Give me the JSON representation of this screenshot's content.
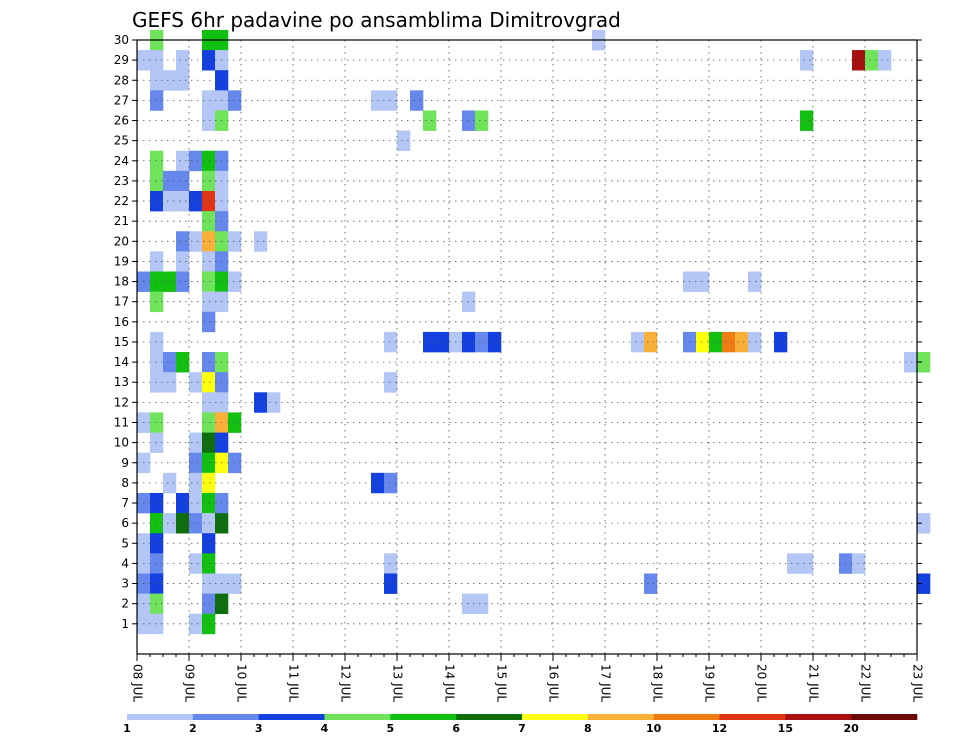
{
  "chart_data": {
    "type": "heatmap",
    "title": "GEFS 6hr padavine po ansamblima Dimitrovgrad",
    "xlabel": "",
    "ylabel": "",
    "x_ticks": [
      "08 JUL",
      "09 JUL",
      "10 JUL",
      "11 JUL",
      "12 JUL",
      "13 JUL",
      "14 JUL",
      "15 JUL",
      "16 JUL",
      "17 JUL",
      "18 JUL",
      "19 JUL",
      "20 JUL",
      "21 JUL",
      "22 JUL",
      "23 JUL"
    ],
    "y_ticks": [
      "1",
      "2",
      "3",
      "4",
      "5",
      "6",
      "7",
      "8",
      "9",
      "10",
      "11",
      "12",
      "13",
      "14",
      "15",
      "16",
      "17",
      "18",
      "19",
      "20",
      "21",
      "22",
      "23",
      "24",
      "25",
      "26",
      "27",
      "28",
      "29",
      "30"
    ],
    "x_steps_per_day": 4,
    "grid": true,
    "colorbar": {
      "labels": [
        "1",
        "2",
        "3",
        "4",
        "5",
        "6",
        "7",
        "8",
        "10",
        "12",
        "15",
        "20"
      ],
      "colors": [
        "#b3c6f5",
        "#6688ec",
        "#1540e0",
        "#6fe35a",
        "#12c012",
        "#0e6e0e",
        "#ffff10",
        "#f8b038",
        "#f07c14",
        "#e03414",
        "#a81010",
        "#6c0808"
      ]
    },
    "cell_value_note": "values are colour class indices 1-12 (1 = 1-2 mm ... 12 = >20 mm)",
    "cells": [
      {
        "m": 30,
        "s": 1,
        "v": 4
      },
      {
        "m": 30,
        "s": 5,
        "v": 5
      },
      {
        "m": 30,
        "s": 6,
        "v": 5
      },
      {
        "m": 30,
        "s": 35,
        "v": 1
      },
      {
        "m": 29,
        "s": 0,
        "v": 1
      },
      {
        "m": 29,
        "s": 1,
        "v": 1
      },
      {
        "m": 29,
        "s": 3,
        "v": 1
      },
      {
        "m": 29,
        "s": 5,
        "v": 3
      },
      {
        "m": 29,
        "s": 6,
        "v": 1
      },
      {
        "m": 29,
        "s": 51,
        "v": 1
      },
      {
        "m": 29,
        "s": 55,
        "v": 11
      },
      {
        "m": 29,
        "s": 56,
        "v": 4
      },
      {
        "m": 29,
        "s": 57,
        "v": 1
      },
      {
        "m": 28,
        "s": 1,
        "v": 1
      },
      {
        "m": 28,
        "s": 2,
        "v": 1
      },
      {
        "m": 28,
        "s": 3,
        "v": 1
      },
      {
        "m": 28,
        "s": 6,
        "v": 3
      },
      {
        "m": 27,
        "s": 1,
        "v": 2
      },
      {
        "m": 27,
        "s": 5,
        "v": 1
      },
      {
        "m": 27,
        "s": 6,
        "v": 1
      },
      {
        "m": 27,
        "s": 7,
        "v": 2
      },
      {
        "m": 27,
        "s": 18,
        "v": 1
      },
      {
        "m": 27,
        "s": 19,
        "v": 1
      },
      {
        "m": 27,
        "s": 21,
        "v": 2
      },
      {
        "m": 26,
        "s": 5,
        "v": 1
      },
      {
        "m": 26,
        "s": 6,
        "v": 4
      },
      {
        "m": 26,
        "s": 22,
        "v": 4
      },
      {
        "m": 26,
        "s": 25,
        "v": 2
      },
      {
        "m": 26,
        "s": 26,
        "v": 4
      },
      {
        "m": 26,
        "s": 51,
        "v": 5
      },
      {
        "m": 25,
        "s": 20,
        "v": 1
      },
      {
        "m": 24,
        "s": 1,
        "v": 4
      },
      {
        "m": 24,
        "s": 3,
        "v": 1
      },
      {
        "m": 24,
        "s": 4,
        "v": 2
      },
      {
        "m": 24,
        "s": 5,
        "v": 5
      },
      {
        "m": 24,
        "s": 6,
        "v": 2
      },
      {
        "m": 23,
        "s": 1,
        "v": 4
      },
      {
        "m": 23,
        "s": 2,
        "v": 2
      },
      {
        "m": 23,
        "s": 3,
        "v": 2
      },
      {
        "m": 23,
        "s": 5,
        "v": 4
      },
      {
        "m": 23,
        "s": 6,
        "v": 1
      },
      {
        "m": 22,
        "s": 1,
        "v": 3
      },
      {
        "m": 22,
        "s": 2,
        "v": 1
      },
      {
        "m": 22,
        "s": 3,
        "v": 1
      },
      {
        "m": 22,
        "s": 4,
        "v": 3
      },
      {
        "m": 22,
        "s": 5,
        "v": 10
      },
      {
        "m": 22,
        "s": 6,
        "v": 1
      },
      {
        "m": 21,
        "s": 5,
        "v": 4
      },
      {
        "m": 21,
        "s": 6,
        "v": 2
      },
      {
        "m": 20,
        "s": 3,
        "v": 2
      },
      {
        "m": 20,
        "s": 4,
        "v": 1
      },
      {
        "m": 20,
        "s": 5,
        "v": 8
      },
      {
        "m": 20,
        "s": 6,
        "v": 4
      },
      {
        "m": 20,
        "s": 7,
        "v": 1
      },
      {
        "m": 20,
        "s": 9,
        "v": 1
      },
      {
        "m": 19,
        "s": 1,
        "v": 1
      },
      {
        "m": 19,
        "s": 3,
        "v": 1
      },
      {
        "m": 19,
        "s": 5,
        "v": 1
      },
      {
        "m": 19,
        "s": 6,
        "v": 2
      },
      {
        "m": 18,
        "s": 0,
        "v": 2
      },
      {
        "m": 18,
        "s": 1,
        "v": 5
      },
      {
        "m": 18,
        "s": 2,
        "v": 5
      },
      {
        "m": 18,
        "s": 3,
        "v": 2
      },
      {
        "m": 18,
        "s": 5,
        "v": 4
      },
      {
        "m": 18,
        "s": 6,
        "v": 5
      },
      {
        "m": 18,
        "s": 7,
        "v": 1
      },
      {
        "m": 18,
        "s": 42,
        "v": 1
      },
      {
        "m": 18,
        "s": 43,
        "v": 1
      },
      {
        "m": 18,
        "s": 47,
        "v": 1
      },
      {
        "m": 17,
        "s": 1,
        "v": 4
      },
      {
        "m": 17,
        "s": 5,
        "v": 1
      },
      {
        "m": 17,
        "s": 6,
        "v": 1
      },
      {
        "m": 17,
        "s": 25,
        "v": 1
      },
      {
        "m": 16,
        "s": 5,
        "v": 2
      },
      {
        "m": 15,
        "s": 1,
        "v": 1
      },
      {
        "m": 15,
        "s": 19,
        "v": 1
      },
      {
        "m": 15,
        "s": 22,
        "v": 3
      },
      {
        "m": 15,
        "s": 23,
        "v": 3
      },
      {
        "m": 15,
        "s": 24,
        "v": 1
      },
      {
        "m": 15,
        "s": 25,
        "v": 3
      },
      {
        "m": 15,
        "s": 26,
        "v": 2
      },
      {
        "m": 15,
        "s": 27,
        "v": 3
      },
      {
        "m": 15,
        "s": 38,
        "v": 1
      },
      {
        "m": 15,
        "s": 39,
        "v": 8
      },
      {
        "m": 15,
        "s": 42,
        "v": 2
      },
      {
        "m": 15,
        "s": 43,
        "v": 7
      },
      {
        "m": 15,
        "s": 44,
        "v": 5
      },
      {
        "m": 15,
        "s": 45,
        "v": 9
      },
      {
        "m": 15,
        "s": 46,
        "v": 8
      },
      {
        "m": 15,
        "s": 47,
        "v": 1
      },
      {
        "m": 15,
        "s": 49,
        "v": 3
      },
      {
        "m": 14,
        "s": 1,
        "v": 1
      },
      {
        "m": 14,
        "s": 2,
        "v": 2
      },
      {
        "m": 14,
        "s": 3,
        "v": 5
      },
      {
        "m": 14,
        "s": 5,
        "v": 2
      },
      {
        "m": 14,
        "s": 6,
        "v": 4
      },
      {
        "m": 14,
        "s": 59,
        "v": 1
      },
      {
        "m": 14,
        "s": 60,
        "v": 4
      },
      {
        "m": 13,
        "s": 1,
        "v": 1
      },
      {
        "m": 13,
        "s": 2,
        "v": 1
      },
      {
        "m": 13,
        "s": 4,
        "v": 1
      },
      {
        "m": 13,
        "s": 5,
        "v": 7
      },
      {
        "m": 13,
        "s": 6,
        "v": 2
      },
      {
        "m": 13,
        "s": 19,
        "v": 1
      },
      {
        "m": 12,
        "s": 5,
        "v": 1
      },
      {
        "m": 12,
        "s": 6,
        "v": 1
      },
      {
        "m": 12,
        "s": 9,
        "v": 3
      },
      {
        "m": 12,
        "s": 10,
        "v": 1
      },
      {
        "m": 11,
        "s": 0,
        "v": 1
      },
      {
        "m": 11,
        "s": 1,
        "v": 4
      },
      {
        "m": 11,
        "s": 5,
        "v": 4
      },
      {
        "m": 11,
        "s": 6,
        "v": 8
      },
      {
        "m": 11,
        "s": 7,
        "v": 5
      },
      {
        "m": 10,
        "s": 1,
        "v": 1
      },
      {
        "m": 10,
        "s": 4,
        "v": 1
      },
      {
        "m": 10,
        "s": 5,
        "v": 6
      },
      {
        "m": 10,
        "s": 6,
        "v": 3
      },
      {
        "m": 9,
        "s": 0,
        "v": 1
      },
      {
        "m": 9,
        "s": 4,
        "v": 2
      },
      {
        "m": 9,
        "s": 5,
        "v": 5
      },
      {
        "m": 9,
        "s": 6,
        "v": 7
      },
      {
        "m": 9,
        "s": 7,
        "v": 2
      },
      {
        "m": 8,
        "s": 2,
        "v": 1
      },
      {
        "m": 8,
        "s": 4,
        "v": 1
      },
      {
        "m": 8,
        "s": 5,
        "v": 7
      },
      {
        "m": 8,
        "s": 18,
        "v": 3
      },
      {
        "m": 8,
        "s": 19,
        "v": 2
      },
      {
        "m": 7,
        "s": 0,
        "v": 2
      },
      {
        "m": 7,
        "s": 1,
        "v": 3
      },
      {
        "m": 7,
        "s": 3,
        "v": 3
      },
      {
        "m": 7,
        "s": 4,
        "v": 1
      },
      {
        "m": 7,
        "s": 5,
        "v": 5
      },
      {
        "m": 7,
        "s": 6,
        "v": 2
      },
      {
        "m": 6,
        "s": 1,
        "v": 5
      },
      {
        "m": 6,
        "s": 2,
        "v": 1
      },
      {
        "m": 6,
        "s": 3,
        "v": 6
      },
      {
        "m": 6,
        "s": 4,
        "v": 2
      },
      {
        "m": 6,
        "s": 5,
        "v": 1
      },
      {
        "m": 6,
        "s": 6,
        "v": 6
      },
      {
        "m": 6,
        "s": 60,
        "v": 1
      },
      {
        "m": 5,
        "s": 0,
        "v": 1
      },
      {
        "m": 5,
        "s": 1,
        "v": 3
      },
      {
        "m": 5,
        "s": 5,
        "v": 3
      },
      {
        "m": 4,
        "s": 0,
        "v": 1
      },
      {
        "m": 4,
        "s": 1,
        "v": 2
      },
      {
        "m": 4,
        "s": 4,
        "v": 1
      },
      {
        "m": 4,
        "s": 5,
        "v": 5
      },
      {
        "m": 4,
        "s": 19,
        "v": 1
      },
      {
        "m": 4,
        "s": 50,
        "v": 1
      },
      {
        "m": 4,
        "s": 51,
        "v": 1
      },
      {
        "m": 4,
        "s": 54,
        "v": 2
      },
      {
        "m": 4,
        "s": 55,
        "v": 1
      },
      {
        "m": 3,
        "s": 0,
        "v": 2
      },
      {
        "m": 3,
        "s": 1,
        "v": 3
      },
      {
        "m": 3,
        "s": 5,
        "v": 1
      },
      {
        "m": 3,
        "s": 6,
        "v": 1
      },
      {
        "m": 3,
        "s": 7,
        "v": 1
      },
      {
        "m": 3,
        "s": 19,
        "v": 3
      },
      {
        "m": 3,
        "s": 39,
        "v": 2
      },
      {
        "m": 3,
        "s": 60,
        "v": 3
      },
      {
        "m": 2,
        "s": 0,
        "v": 1
      },
      {
        "m": 2,
        "s": 1,
        "v": 4
      },
      {
        "m": 2,
        "s": 5,
        "v": 2
      },
      {
        "m": 2,
        "s": 6,
        "v": 6
      },
      {
        "m": 2,
        "s": 25,
        "v": 1
      },
      {
        "m": 2,
        "s": 26,
        "v": 1
      },
      {
        "m": 1,
        "s": 0,
        "v": 1
      },
      {
        "m": 1,
        "s": 1,
        "v": 1
      },
      {
        "m": 1,
        "s": 4,
        "v": 1
      },
      {
        "m": 1,
        "s": 5,
        "v": 5
      }
    ]
  }
}
